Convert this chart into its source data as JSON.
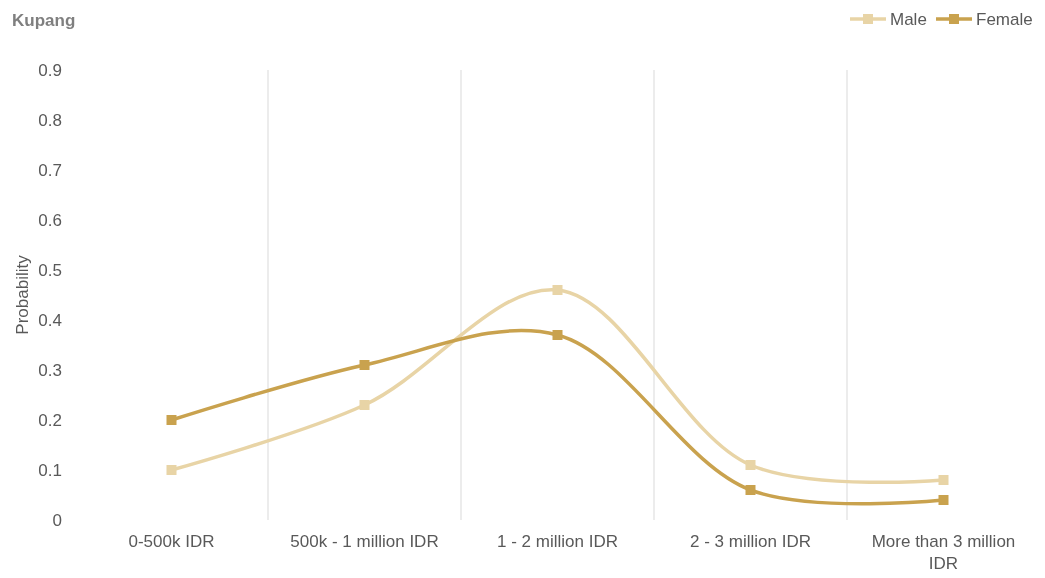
{
  "chart_data": {
    "type": "line",
    "title": "Kupang",
    "ylabel": "Probability",
    "categories": [
      "0-500k IDR",
      "500k - 1 million IDR",
      "1 - 2 million IDR",
      "2 - 3 million IDR",
      "More than 3 million IDR"
    ],
    "series": [
      {
        "name": "Male",
        "color": "#e8d4a6",
        "values": [
          0.1,
          0.23,
          0.46,
          0.11,
          0.08
        ]
      },
      {
        "name": "Female",
        "color": "#c9a24e",
        "values": [
          0.2,
          0.31,
          0.37,
          0.06,
          0.04
        ]
      }
    ],
    "ylim": [
      0,
      0.9
    ],
    "yticks": [
      0,
      0.1,
      0.2,
      0.3,
      0.4,
      0.5,
      0.6,
      0.7,
      0.8,
      0.9
    ],
    "grid": "x",
    "legend": "top right",
    "marker": "square",
    "line_style": "solid"
  }
}
